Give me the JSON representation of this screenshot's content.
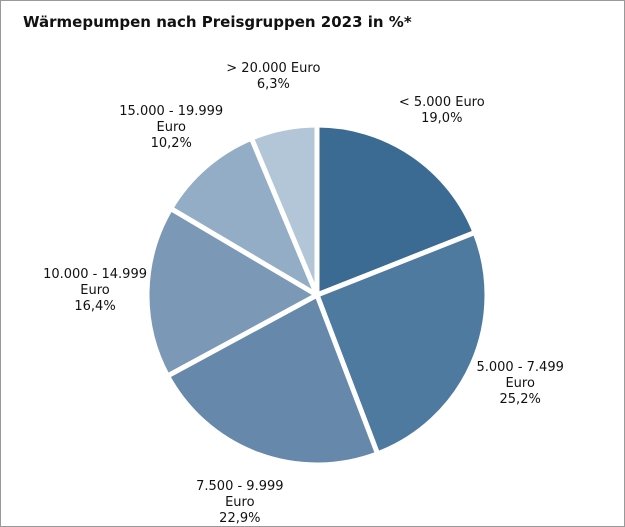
{
  "chart_data": {
    "type": "pie",
    "title": "Wärmepumpen nach Preisgruppen 2023 in %*",
    "categories": [
      "< 5.000 Euro",
      "5.000 - 7.499 Euro",
      "7.500 - 9.999 Euro",
      "10.000 - 14.999 Euro",
      "15.000 - 19.999 Euro",
      "> 20.000 Euro"
    ],
    "values": [
      19.0,
      25.2,
      22.9,
      16.4,
      10.2,
      6.3
    ],
    "value_labels": [
      "19,0%",
      "25,2%",
      "22,9%",
      "16,4%",
      "10,2%",
      "6,3%"
    ],
    "colors": [
      "#3b6a92",
      "#4f7aa0",
      "#6688ab",
      "#7b99b7",
      "#93adc6",
      "#b3c6d8"
    ]
  }
}
